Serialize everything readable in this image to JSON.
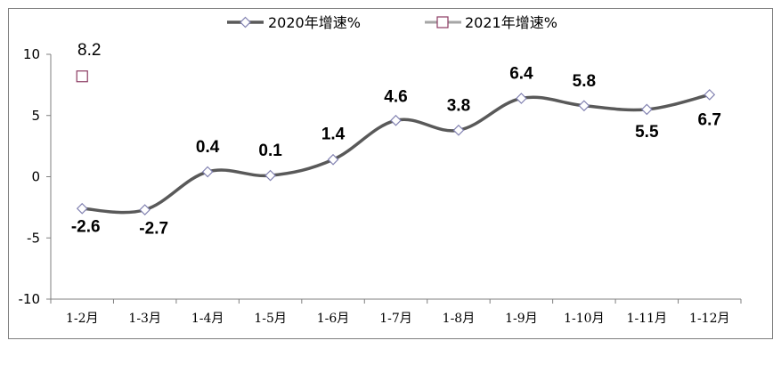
{
  "chart_data": {
    "type": "line",
    "categories": [
      "1-2月",
      "1-3月",
      "1-4月",
      "1-5月",
      "1-6月",
      "1-7月",
      "1-8月",
      "1-9月",
      "1-10月",
      "1-11月",
      "1-12月"
    ],
    "series": [
      {
        "name": "2020年增速%",
        "values": [
          -2.6,
          -2.7,
          0.4,
          0.1,
          1.4,
          4.6,
          3.8,
          6.4,
          5.8,
          5.5,
          6.7
        ],
        "labels": [
          "-2.6",
          "-2.7",
          "0.4",
          "0.1",
          "1.4",
          "4.6",
          "3.8",
          "6.4",
          "5.8",
          "5.5",
          "6.7"
        ],
        "color": "#595959",
        "marker_fill": "#ffffff",
        "marker_stroke": "#8080b0"
      },
      {
        "name": "2021年增速%",
        "values": [
          8.2,
          null,
          null,
          null,
          null,
          null,
          null,
          null,
          null,
          null,
          null
        ],
        "labels": [
          "8.2"
        ],
        "color": "#a6a6a6",
        "marker_stroke": "#8b3a62"
      }
    ],
    "y_ticks": [
      "10",
      "5",
      "0",
      "-5",
      "-10"
    ],
    "ylim": [
      -10,
      10
    ],
    "grid": false,
    "legend_position": "top"
  }
}
